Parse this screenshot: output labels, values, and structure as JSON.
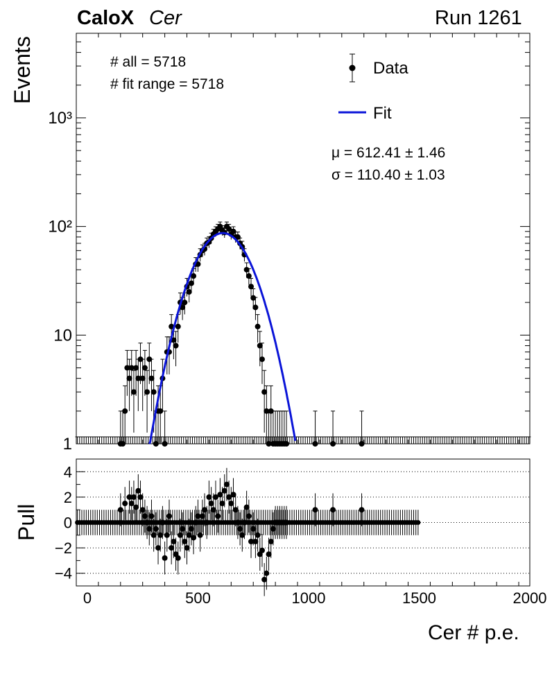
{
  "header": {
    "experiment": "CaloX",
    "channel": "Cer",
    "run": "Run 1261"
  },
  "stats": {
    "all": "# all = 5718",
    "fit_range": "# fit range = 5718",
    "mu": "μ = 612.41 ± 1.46",
    "sigma": "σ = 110.40 ± 1.03"
  },
  "legend": {
    "data": "Data",
    "fit": "Fit"
  },
  "colors": {
    "fit": "#0a14d8",
    "data": "#000000",
    "gridline": "#000000"
  },
  "chart_data": [
    {
      "type": "scatter",
      "title": "",
      "xlabel": "",
      "ylabel": "Events",
      "yscale": "log",
      "xlim": [
        -50,
        2000
      ],
      "ylim": [
        1,
        6000
      ],
      "yticks": [
        {
          "value": 1,
          "label": "1"
        },
        {
          "value": 10,
          "label": "10"
        },
        {
          "value": 100,
          "label": "10²"
        },
        {
          "value": 1000,
          "label": "10³"
        }
      ],
      "legend_position": "top-right",
      "series": [
        {
          "name": "Data",
          "style": "markers-with-errorbars",
          "x": [
            150,
            160,
            170,
            180,
            190,
            200,
            210,
            220,
            230,
            240,
            250,
            260,
            270,
            280,
            290,
            300,
            310,
            320,
            330,
            340,
            350,
            360,
            370,
            380,
            390,
            400,
            410,
            420,
            430,
            440,
            450,
            460,
            470,
            480,
            490,
            500,
            510,
            520,
            530,
            540,
            550,
            560,
            570,
            580,
            590,
            600,
            610,
            620,
            630,
            640,
            650,
            660,
            670,
            680,
            690,
            700,
            710,
            720,
            730,
            740,
            750,
            760,
            770,
            780,
            790,
            800,
            810,
            820,
            830,
            840,
            850,
            860,
            870,
            880,
            890,
            900,
            1030,
            1110,
            1240
          ],
          "y": [
            1,
            1,
            2,
            5,
            4,
            5,
            3,
            5,
            4,
            6,
            4,
            5,
            3,
            6,
            4,
            3,
            1,
            2,
            2,
            4,
            1,
            7,
            7,
            12,
            9,
            8,
            12,
            20,
            18,
            20,
            28,
            25,
            30,
            35,
            45,
            45,
            55,
            60,
            62,
            70,
            72,
            78,
            85,
            90,
            95,
            100,
            92,
            88,
            100,
            95,
            85,
            90,
            80,
            80,
            70,
            65,
            55,
            40,
            35,
            28,
            22,
            18,
            12,
            8,
            6,
            3,
            2,
            1,
            2,
            1,
            1,
            1,
            1,
            1,
            1,
            1,
            1,
            1,
            1
          ]
        },
        {
          "name": "Fit",
          "style": "gaussian-line",
          "amplitude": 87,
          "mean": 612.41,
          "sigma": 110.4,
          "x_range": [
            280,
            940
          ]
        }
      ]
    },
    {
      "type": "scatter",
      "title": "",
      "xlabel": "Cer # p.e.",
      "ylabel": "Pull",
      "xlim": [
        -50,
        2000
      ],
      "ylim": [
        -5,
        5
      ],
      "yticks": [
        -4,
        -2,
        0,
        2,
        4
      ],
      "xticks": [
        0,
        500,
        1000,
        1500,
        2000
      ],
      "dotted_gridlines": [
        -4,
        -2,
        0,
        2,
        4
      ],
      "series": [
        {
          "name": "Pull",
          "style": "markers-with-errorbars",
          "x": [
            150,
            170,
            190,
            200,
            210,
            220,
            230,
            240,
            250,
            260,
            270,
            280,
            290,
            300,
            310,
            320,
            330,
            340,
            350,
            360,
            370,
            380,
            390,
            400,
            410,
            420,
            430,
            440,
            450,
            460,
            470,
            480,
            490,
            500,
            510,
            520,
            530,
            540,
            550,
            560,
            570,
            580,
            590,
            600,
            610,
            620,
            630,
            640,
            650,
            660,
            670,
            680,
            690,
            700,
            710,
            720,
            730,
            740,
            750,
            760,
            770,
            780,
            790,
            800,
            810,
            820,
            830,
            840,
            850,
            860,
            870,
            880,
            890,
            900,
            1030,
            1110,
            1240
          ],
          "y": [
            1,
            1.5,
            2,
            1.5,
            2,
            1.2,
            2.5,
            2,
            1,
            0.5,
            0,
            -0.5,
            0.5,
            -1,
            -0.5,
            -2,
            -1,
            0,
            -2.8,
            -1,
            0.5,
            -2,
            -1.5,
            -2.5,
            -2.8,
            -1,
            -0.5,
            -1.5,
            -2,
            -1,
            -0.5,
            -1.2,
            0,
            0.5,
            -1,
            0.5,
            1,
            0,
            2,
            1.5,
            1,
            2,
            0.5,
            2.2,
            1.5,
            2.5,
            3,
            2,
            1.5,
            2.2,
            1,
            0,
            -0.5,
            -1,
            0,
            1.2,
            0.5,
            -1.5,
            -0.5,
            -1.5,
            -1,
            -2.5,
            -2.2,
            -4.5,
            -4,
            -2.5,
            -1.5,
            -0.5,
            0,
            0,
            0,
            0,
            0,
            0,
            1,
            1,
            1
          ]
        }
      ]
    }
  ]
}
